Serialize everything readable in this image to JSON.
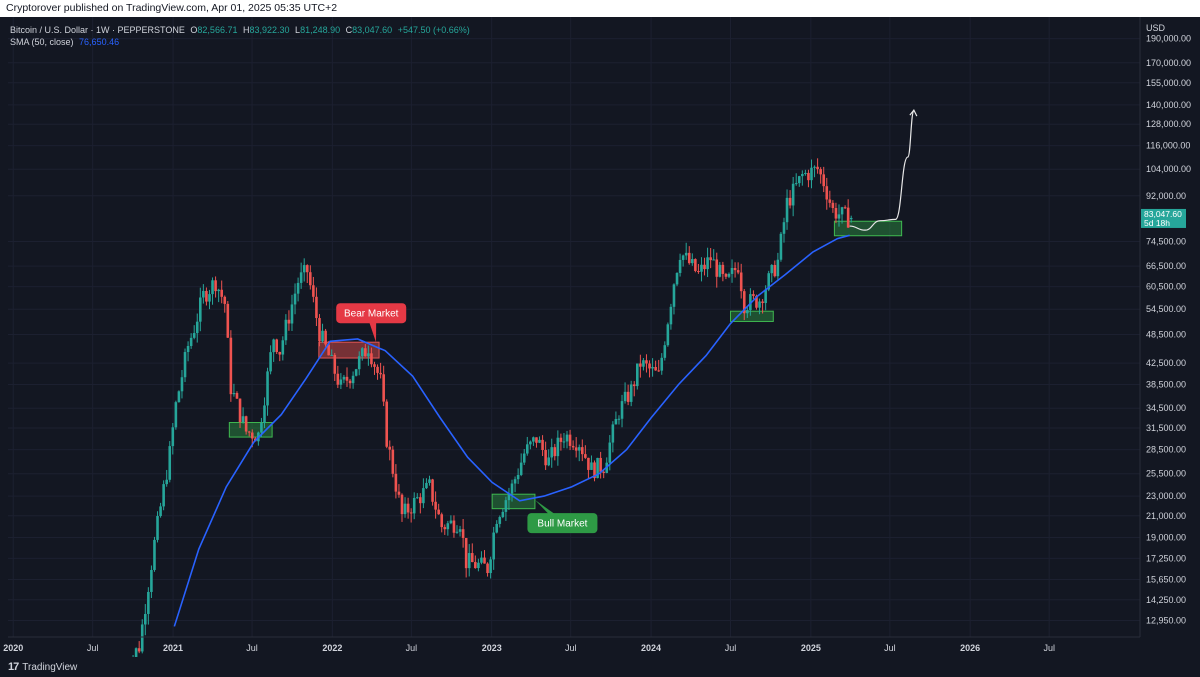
{
  "header": {
    "publish_line": "Cryptorover published on TradingView.com, Apr 01, 2025 05:35 UTC+2"
  },
  "legend": {
    "symbol": "Bitcoin / U.S. Dollar · 1W · PEPPERSTONE",
    "o_label": "O",
    "o_value": "82,566.71",
    "h_label": "H",
    "h_value": "83,922.30",
    "l_label": "L",
    "l_value": "81,248.90",
    "c_label": "C",
    "c_value": "83,047.60",
    "change": "+547.50 (+0.66%)",
    "sma_label": "SMA (50, close)",
    "sma_value": "76,650.46"
  },
  "footer": {
    "brand": "TradingView",
    "logo_mark": "17"
  },
  "colors": {
    "bg": "#131722",
    "up": "#26a69a",
    "down": "#ef5350",
    "sma": "#2962ff",
    "bear": "#e53945",
    "bull": "#2e9a45"
  },
  "chart_data": {
    "type": "candlestick",
    "title": "",
    "currency": "USD",
    "y_scale": "log",
    "ylim": [
      12000,
      210000
    ],
    "y_ticks": [
      190000,
      170000,
      155000,
      140000,
      128000,
      116000,
      104000,
      92000,
      74500,
      66500,
      60500,
      54500,
      48500,
      42500,
      38500,
      34500,
      31500,
      28500,
      25500,
      23000,
      21000,
      19000,
      17250,
      15650,
      14250,
      12950
    ],
    "y_tick_labels": [
      "190,000.00",
      "170,000.00",
      "155,000.00",
      "140,000.00",
      "128,000.00",
      "116,000.00",
      "104,000.00",
      "92,000.00",
      "74,500.00",
      "66,500.00",
      "60,500.00",
      "54,500.00",
      "48,500.00",
      "42,500.00",
      "38,500.00",
      "34,500.00",
      "31,500.00",
      "28,500.00",
      "25,500.00",
      "23,000.00",
      "21,000.00",
      "19,000.00",
      "17,250.00",
      "15,650.00",
      "14,250.00",
      "12,950.00"
    ],
    "xlim": [
      "2019-12-20",
      "2027-01-25"
    ],
    "x_ticks": [
      "2020-01-01",
      "2020-07-01",
      "2021-01-01",
      "2021-07-01",
      "2022-01-01",
      "2022-07-01",
      "2023-01-01",
      "2023-07-01",
      "2024-01-01",
      "2024-07-01",
      "2025-01-01",
      "2025-07-01",
      "2026-01-01",
      "2026-07-01"
    ],
    "x_tick_labels": [
      "2020",
      "Jul",
      "2021",
      "Jul",
      "2022",
      "Jul",
      "2023",
      "Jul",
      "2024",
      "Jul",
      "2025",
      "Jul",
      "2026",
      "Jul"
    ],
    "candle_start": "2020-09-07",
    "price_path": [
      [
        "2020-09-07",
        10000
      ],
      [
        "2020-10-19",
        11500
      ],
      [
        "2020-11-23",
        18500
      ],
      [
        "2020-12-28",
        28000
      ],
      [
        "2021-01-11",
        35000
      ],
      [
        "2021-02-08",
        46000
      ],
      [
        "2021-02-22",
        50000
      ],
      [
        "2021-03-15",
        58000
      ],
      [
        "2021-04-12",
        62000
      ],
      [
        "2021-05-03",
        56000
      ],
      [
        "2021-05-17",
        38000
      ],
      [
        "2021-06-21",
        31000
      ],
      [
        "2021-07-19",
        30500
      ],
      [
        "2021-08-23",
        48000
      ],
      [
        "2021-09-06",
        45000
      ],
      [
        "2021-10-18",
        62000
      ],
      [
        "2021-11-08",
        65000
      ],
      [
        "2021-12-06",
        49000
      ],
      [
        "2022-01-24",
        38000
      ],
      [
        "2022-02-21",
        41000
      ],
      [
        "2022-03-28",
        46000
      ],
      [
        "2022-04-25",
        39000
      ],
      [
        "2022-05-09",
        30000
      ],
      [
        "2022-06-13",
        21000
      ],
      [
        "2022-07-25",
        23000
      ],
      [
        "2022-08-15",
        24000
      ],
      [
        "2022-09-12",
        20000
      ],
      [
        "2022-10-24",
        20500
      ],
      [
        "2022-11-07",
        17000
      ],
      [
        "2022-12-26",
        16500
      ],
      [
        "2023-01-16",
        21000
      ],
      [
        "2023-02-20",
        24000
      ],
      [
        "2023-03-20",
        28000
      ],
      [
        "2023-04-17",
        30000
      ],
      [
        "2023-05-15",
        27000
      ],
      [
        "2023-06-19",
        30500
      ],
      [
        "2023-07-24",
        29500
      ],
      [
        "2023-08-21",
        26000
      ],
      [
        "2023-09-18",
        26500
      ],
      [
        "2023-10-23",
        34000
      ],
      [
        "2023-11-20",
        37500
      ],
      [
        "2023-12-11",
        42500
      ],
      [
        "2024-01-22",
        40000
      ],
      [
        "2024-02-26",
        62000
      ],
      [
        "2024-03-11",
        71000
      ],
      [
        "2024-04-22",
        64000
      ],
      [
        "2024-05-20",
        69000
      ],
      [
        "2024-06-24",
        61000
      ],
      [
        "2024-07-22",
        67000
      ],
      [
        "2024-08-05",
        56000
      ],
      [
        "2024-09-09",
        57000
      ],
      [
        "2024-10-21",
        68000
      ],
      [
        "2024-11-11",
        89000
      ],
      [
        "2024-12-16",
        101000
      ],
      [
        "2025-01-20",
        104000
      ],
      [
        "2025-02-03",
        98000
      ],
      [
        "2025-02-24",
        86000
      ],
      [
        "2025-03-17",
        84000
      ],
      [
        "2025-03-31",
        83047.6
      ]
    ],
    "sma": {
      "name": "SMA (50, close)",
      "points": [
        [
          "2021-01-04",
          12600
        ],
        [
          "2021-03-01",
          18000
        ],
        [
          "2021-05-03",
          24000
        ],
        [
          "2021-07-05",
          29500
        ],
        [
          "2021-09-06",
          33500
        ],
        [
          "2021-11-01",
          39500
        ],
        [
          "2021-12-27",
          47000
        ],
        [
          "2022-02-28",
          47500
        ],
        [
          "2022-05-02",
          45000
        ],
        [
          "2022-07-04",
          40000
        ],
        [
          "2022-09-05",
          33000
        ],
        [
          "2022-11-07",
          27500
        ],
        [
          "2023-01-02",
          24500
        ],
        [
          "2023-03-06",
          22500
        ],
        [
          "2023-05-01",
          23000
        ],
        [
          "2023-07-03",
          24000
        ],
        [
          "2023-09-04",
          25500
        ],
        [
          "2023-11-06",
          28500
        ],
        [
          "2024-01-01",
          33000
        ],
        [
          "2024-03-04",
          38500
        ],
        [
          "2024-05-06",
          44000
        ],
        [
          "2024-07-01",
          51000
        ],
        [
          "2024-09-02",
          58000
        ],
        [
          "2024-11-04",
          64000
        ],
        [
          "2025-01-06",
          71000
        ],
        [
          "2025-03-03",
          75500
        ],
        [
          "2025-03-31",
          76650
        ]
      ]
    },
    "zones": [
      {
        "kind": "support",
        "start": "2021-05-10",
        "end": "2021-08-16",
        "low": 30200,
        "high": 32300
      },
      {
        "kind": "resistance",
        "start": "2021-12-01",
        "end": "2022-04-18",
        "low": 43500,
        "high": 46800
      },
      {
        "kind": "support",
        "start": "2023-01-02",
        "end": "2023-04-10",
        "low": 21700,
        "high": 23200
      },
      {
        "kind": "support",
        "start": "2024-07-01",
        "end": "2024-10-07",
        "low": 51500,
        "high": 54000
      },
      {
        "kind": "support",
        "start": "2025-02-24",
        "end": "2025-07-28",
        "low": 76500,
        "high": 81800
      }
    ],
    "projection": [
      [
        "2025-03-31",
        80000
      ],
      [
        "2025-05-05",
        78500
      ],
      [
        "2025-06-09",
        82000
      ],
      [
        "2025-07-14",
        82500
      ],
      [
        "2025-08-11",
        110000
      ],
      [
        "2025-08-25",
        136000
      ]
    ],
    "annotations": [
      {
        "label": "Bear Market",
        "date": "2022-03-31",
        "price": 53500,
        "kind": "bear",
        "tail_to": [
          "2022-04-11",
          46800
        ]
      },
      {
        "label": "Bull Market",
        "date": "2023-06-12",
        "price": 20300,
        "kind": "bull",
        "tail_to": [
          "2023-04-10",
          22600
        ]
      }
    ],
    "last_price_label": "83,047.60",
    "countdown_label": "5d 18h",
    "ohlc_last": {
      "open": 82566.71,
      "high": 83922.3,
      "low": 81248.9,
      "close": 83047.6
    }
  }
}
